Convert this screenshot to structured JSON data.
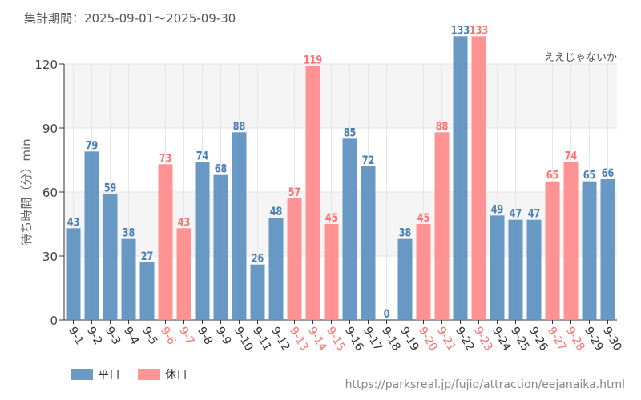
{
  "title": "集計期間：2025-09-01～2025-09-30",
  "attraction": "ええじゃないか",
  "url": "https://parksreal.jp/fujiq/attraction/eejanaika.html",
  "colors": {
    "weekday": "#5b8fbf",
    "holiday": "#ff8a8a",
    "weekday_label": "#4a7fb5",
    "holiday_label": "#ff7070"
  },
  "chart_data": {
    "type": "bar",
    "ylabel": "待ち時間（分）min",
    "ylim": [
      0,
      120
    ],
    "yticks": [
      0,
      30,
      60,
      90,
      120
    ],
    "grid": true,
    "legend": "bottom-left",
    "categories": [
      "9-1",
      "9-2",
      "9-3",
      "9-4",
      "9-5",
      "9-6",
      "9-7",
      "9-8",
      "9-9",
      "9-10",
      "9-11",
      "9-12",
      "9-13",
      "9-14",
      "9-15",
      "9-16",
      "9-17",
      "9-18",
      "9-19",
      "9-20",
      "9-21",
      "9-22",
      "9-23",
      "9-24",
      "9-25",
      "9-26",
      "9-27",
      "9-28",
      "9-29",
      "9-30"
    ],
    "values": [
      43,
      79,
      59,
      38,
      27,
      73,
      43,
      74,
      68,
      88,
      26,
      48,
      57,
      119,
      45,
      85,
      72,
      0,
      38,
      45,
      88,
      133,
      133,
      49,
      47,
      47,
      65,
      74,
      65,
      66
    ],
    "holiday": [
      false,
      false,
      false,
      false,
      false,
      true,
      true,
      false,
      false,
      false,
      false,
      false,
      true,
      true,
      true,
      false,
      false,
      false,
      false,
      true,
      true,
      false,
      true,
      false,
      false,
      false,
      true,
      true,
      false,
      false
    ],
    "series": [
      {
        "name": "平日"
      },
      {
        "name": "休日"
      }
    ]
  }
}
